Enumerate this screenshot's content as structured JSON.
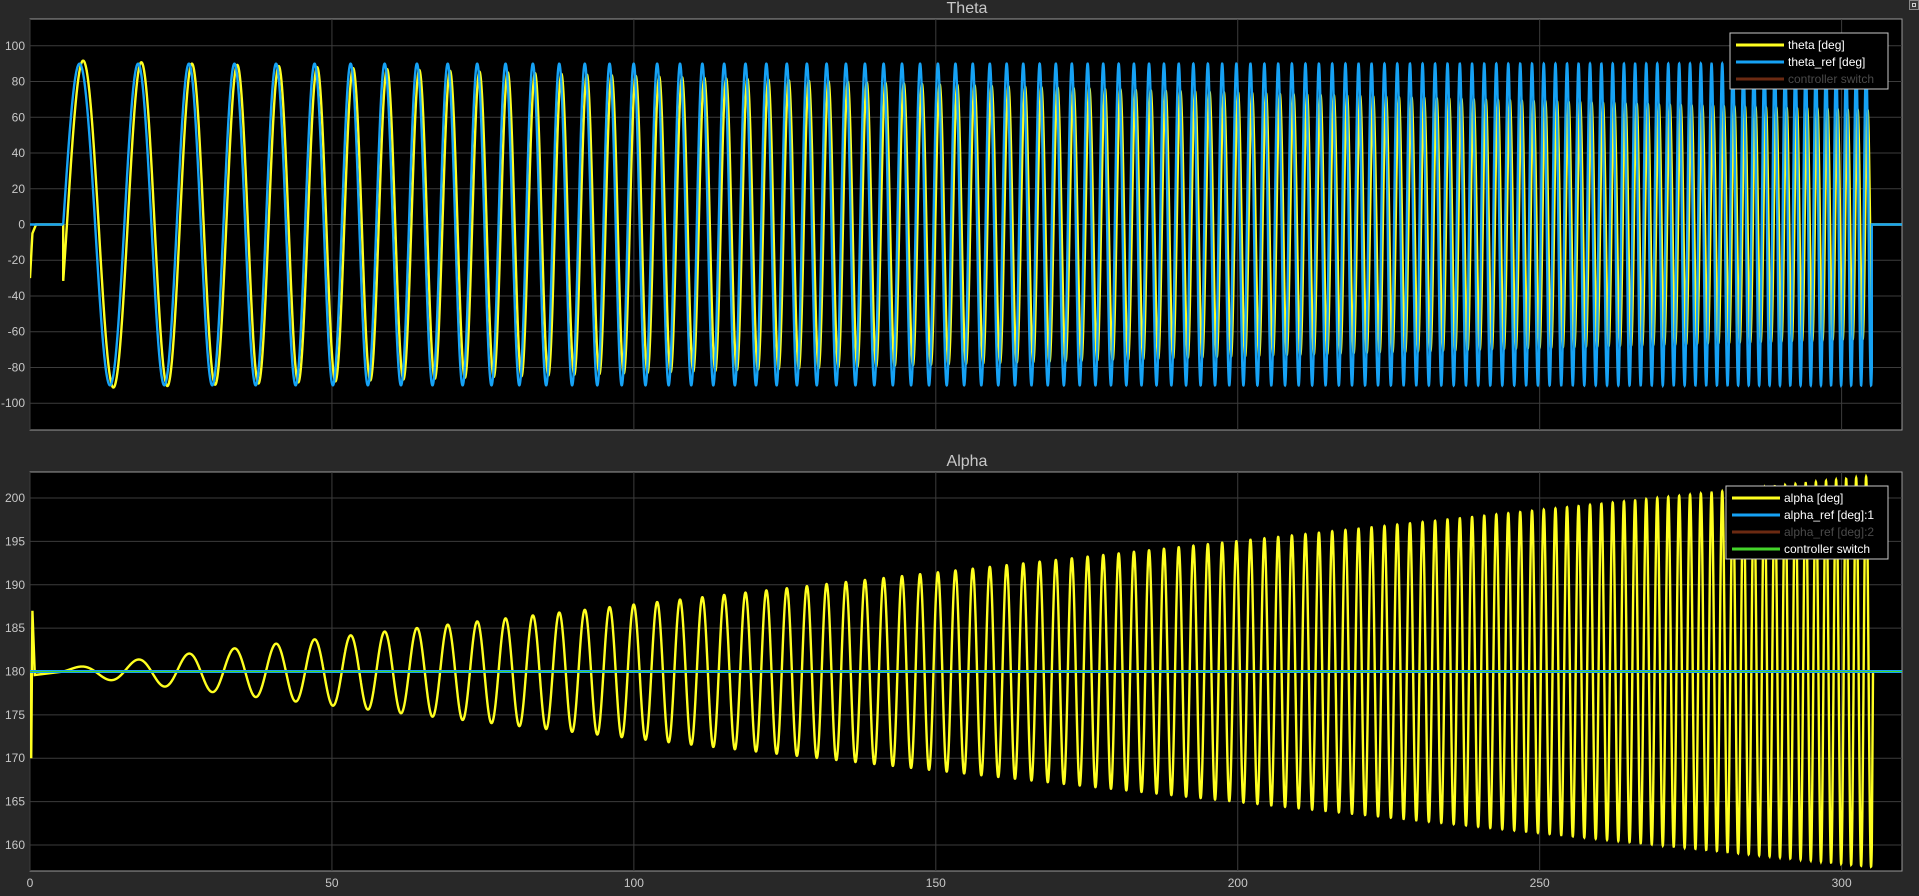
{
  "window": {
    "background": "#282828",
    "axes_background": "#000000",
    "grid_color": "#3c3c3c",
    "text_color": "#c8c8c8"
  },
  "chart_data": [
    {
      "type": "line",
      "title": "Theta",
      "xlim": [
        0,
        310
      ],
      "ylim": [
        -115,
        115
      ],
      "x_ticks": [
        0,
        50,
        100,
        150,
        200,
        250,
        300
      ],
      "y_ticks": [
        100,
        80,
        60,
        40,
        20,
        0,
        -20,
        -40,
        -60,
        -80,
        -100
      ],
      "grid": true,
      "legend_placement": "top-right",
      "signal": {
        "description": "chirp",
        "t_start": 5.5,
        "t_end": 305,
        "freq_start_hz": 0.09,
        "freq_end_hz": 0.61,
        "ref_amplitude": 90,
        "settled_value": 0
      },
      "series": [
        {
          "name": "theta [deg]",
          "color": "#ffff20",
          "amplitude_start": 92,
          "amplitude_end": 64,
          "initial_transient_min": -30
        },
        {
          "name": "theta_ref [deg]",
          "color": "#16a2f5",
          "amplitude": 90
        },
        {
          "name": "controller switch",
          "color": "#6b2a12",
          "value": null
        }
      ]
    },
    {
      "type": "line",
      "title": "Alpha",
      "xlim": [
        0,
        310
      ],
      "ylim": [
        157,
        203
      ],
      "x_ticks": [
        0,
        50,
        100,
        150,
        200,
        250,
        300
      ],
      "x_tick_labels": [
        "0",
        "50",
        "100",
        "150",
        "200",
        "250",
        "300"
      ],
      "y_ticks": [
        200,
        195,
        190,
        185,
        180,
        175,
        170,
        165,
        160
      ],
      "grid": true,
      "legend_placement": "top-right",
      "signal": {
        "t_start": 5.5,
        "t_end": 305,
        "freq_start_hz": 0.09,
        "freq_end_hz": 0.61,
        "center": 180,
        "amplitude_start": 0.3,
        "amplitude_end": 22.5
      },
      "series": [
        {
          "name": "alpha [deg]",
          "color": "#ffff20",
          "initial_transient": [
            170,
            187
          ]
        },
        {
          "name": "alpha_ref [deg]:1",
          "color": "#16a2f5",
          "value": 180
        },
        {
          "name": "alpha_ref [deg]:2",
          "color": "#6b2a12",
          "value": null
        },
        {
          "name": "controller switch",
          "color": "#44d42a",
          "value": 180
        }
      ]
    }
  ]
}
